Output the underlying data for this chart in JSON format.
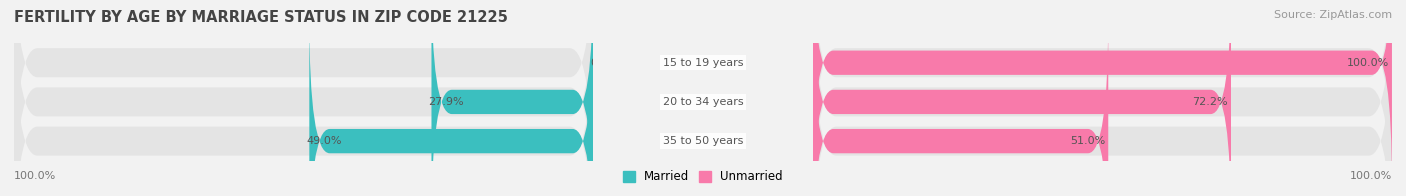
{
  "title": "FERTILITY BY AGE BY MARRIAGE STATUS IN ZIP CODE 21225",
  "source": "Source: ZipAtlas.com",
  "categories": [
    "15 to 19 years",
    "20 to 34 years",
    "35 to 50 years"
  ],
  "married": [
    0.0,
    27.9,
    49.0
  ],
  "unmarried": [
    100.0,
    72.2,
    51.0
  ],
  "married_color": "#3bbfbf",
  "unmarried_color": "#f87aaa",
  "background_color": "#f2f2f2",
  "bar_bg_color": "#e4e4e4",
  "title_fontsize": 10.5,
  "source_fontsize": 8,
  "label_fontsize": 8,
  "cat_fontsize": 8,
  "bar_height": 0.62,
  "legend_married": "Married",
  "legend_unmarried": "Unmarried",
  "figsize": [
    14.06,
    1.96
  ],
  "dpi": 100
}
